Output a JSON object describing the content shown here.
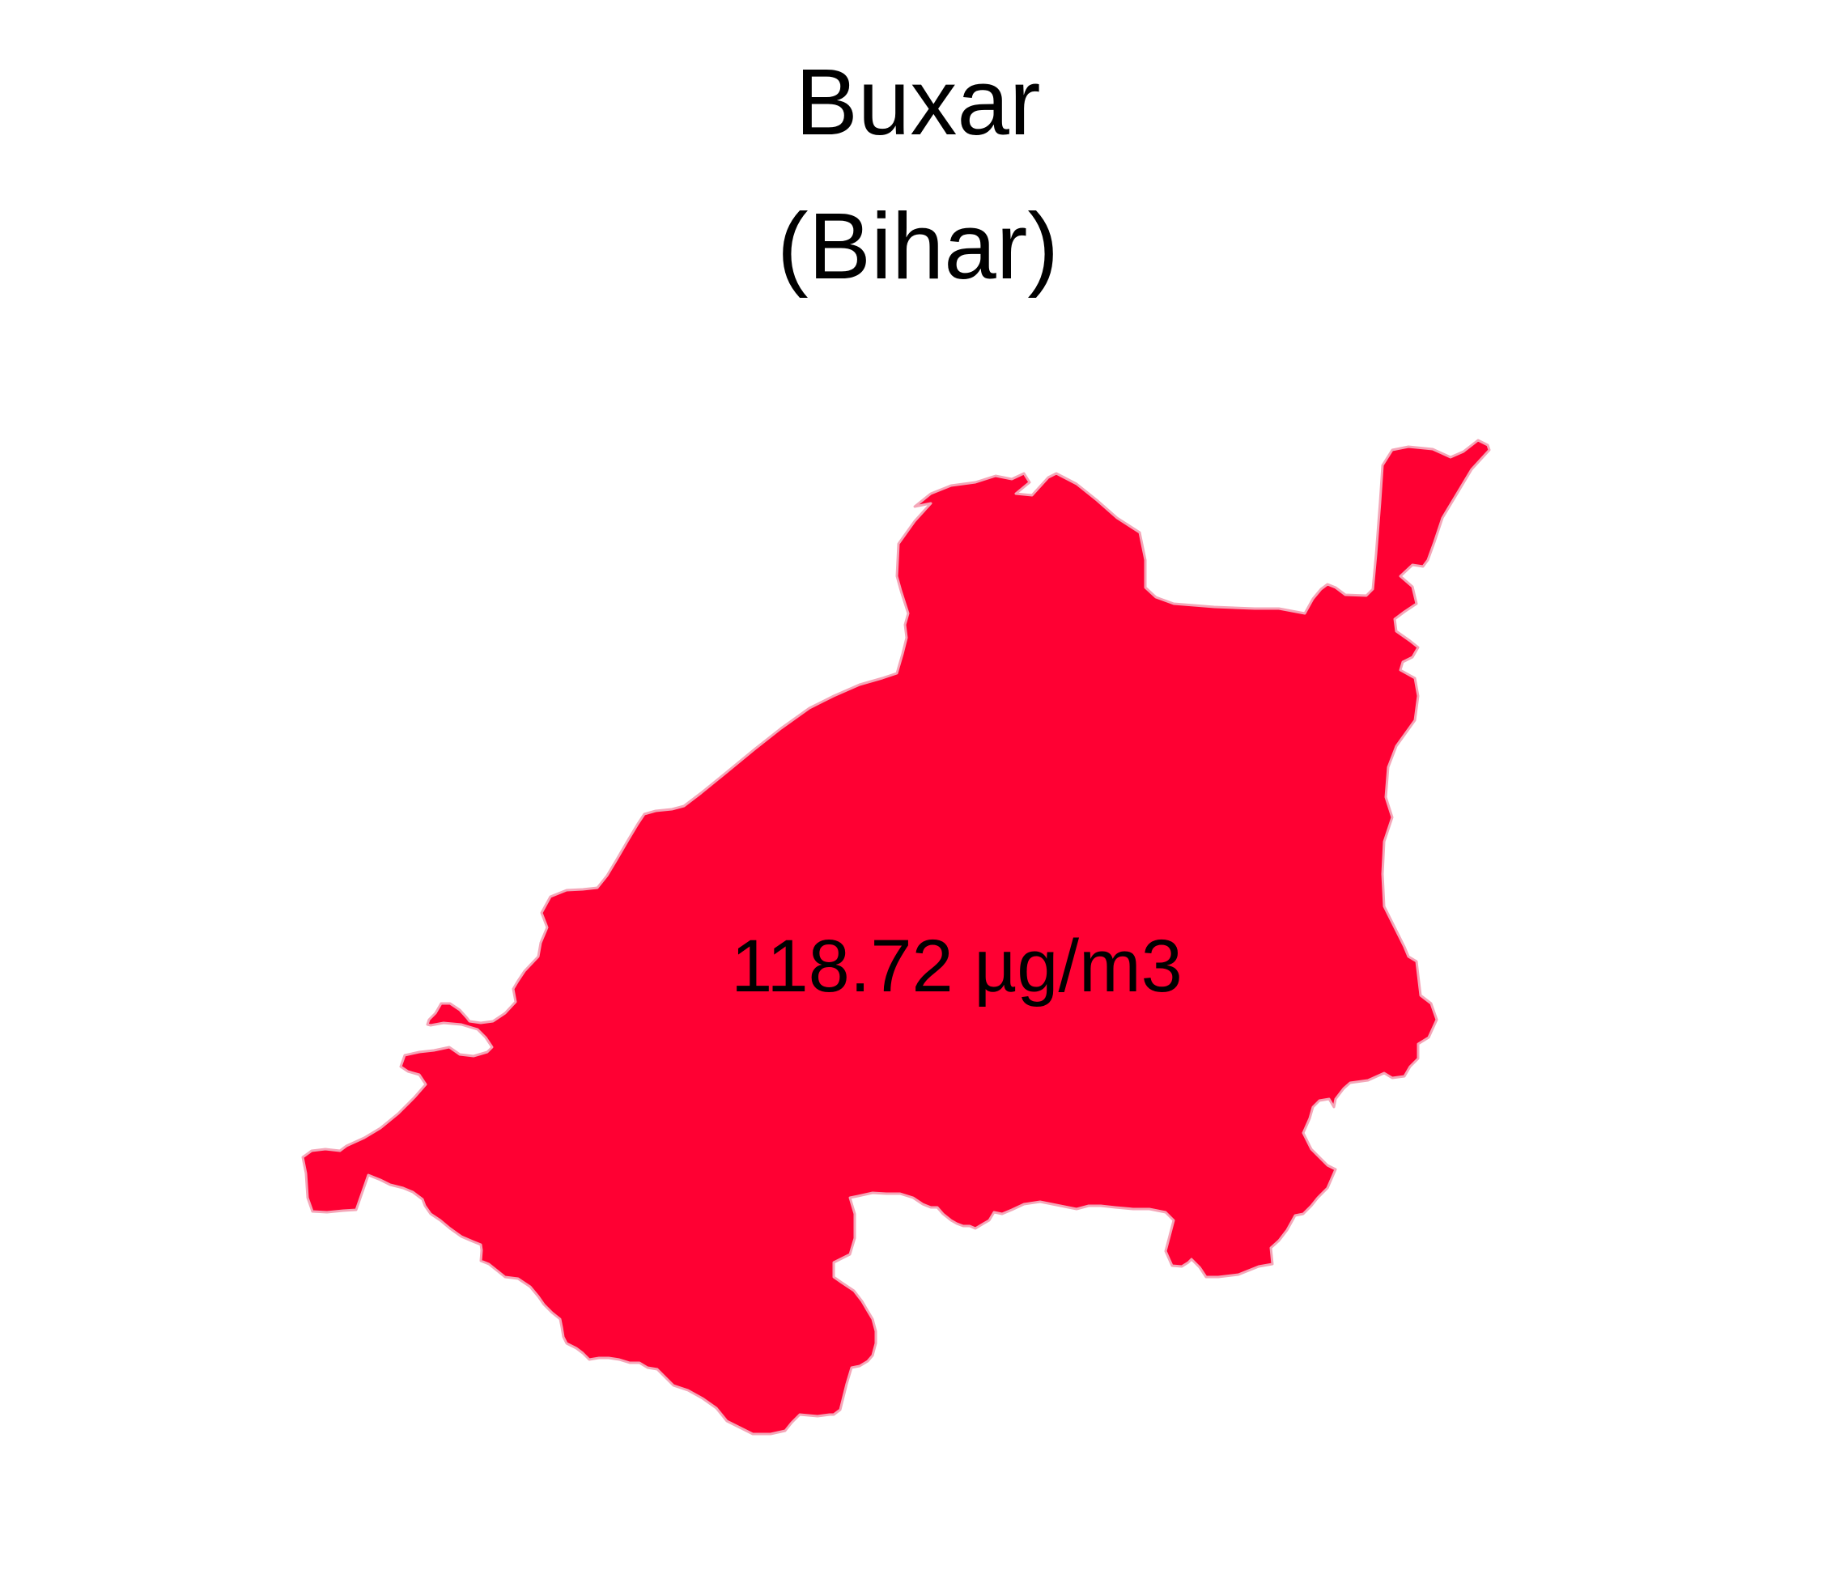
{
  "map": {
    "title": "Buxar",
    "subtitle": "(Bihar)",
    "region_value": "118.72 µg/m3",
    "fill_color": "#FF0033",
    "border_color": "#F4A6B8",
    "background_color": "#FFFFFF"
  }
}
